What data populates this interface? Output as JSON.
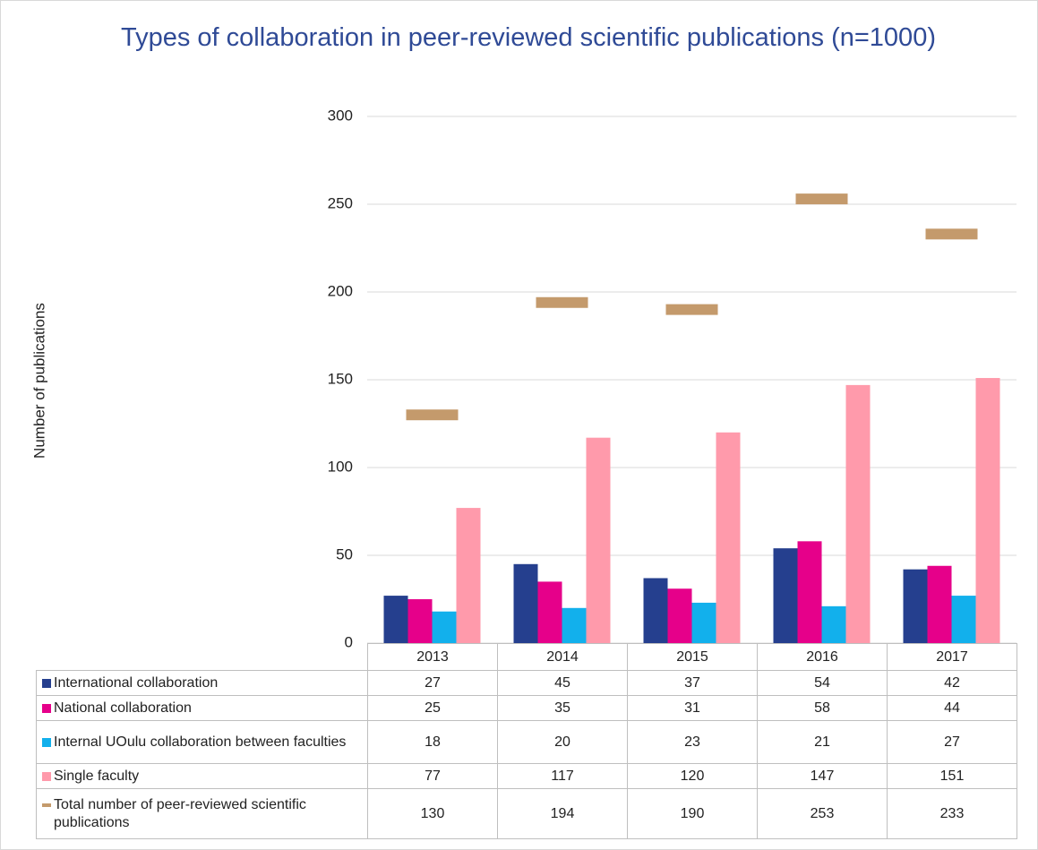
{
  "chart_data": {
    "type": "bar",
    "title": "Types of collaboration in peer-reviewed scientific publications (n=1000)",
    "y_label": "Number of publications",
    "categories": [
      "2013",
      "2014",
      "2015",
      "2016",
      "2017"
    ],
    "series": [
      {
        "name": "International collaboration",
        "color": "#253f8e",
        "values": [
          27,
          45,
          37,
          54,
          42
        ]
      },
      {
        "name": "National collaboration",
        "color": "#e6008a",
        "values": [
          25,
          35,
          31,
          58,
          44
        ]
      },
      {
        "name": "Internal UOulu collaboration between faculties",
        "color": "#12b0ec",
        "values": [
          18,
          20,
          23,
          21,
          27
        ]
      },
      {
        "name": "Single faculty",
        "color": "#ff9aab",
        "values": [
          77,
          117,
          120,
          147,
          151
        ]
      },
      {
        "name": "Total number of peer-reviewed scientific publications",
        "color": "#c49a6c",
        "marker": "dash",
        "values": [
          130,
          194,
          190,
          253,
          233
        ]
      }
    ],
    "ylim": [
      0,
      300
    ],
    "yticks": [
      0,
      50,
      100,
      150,
      200,
      250,
      300
    ],
    "grid": true
  }
}
